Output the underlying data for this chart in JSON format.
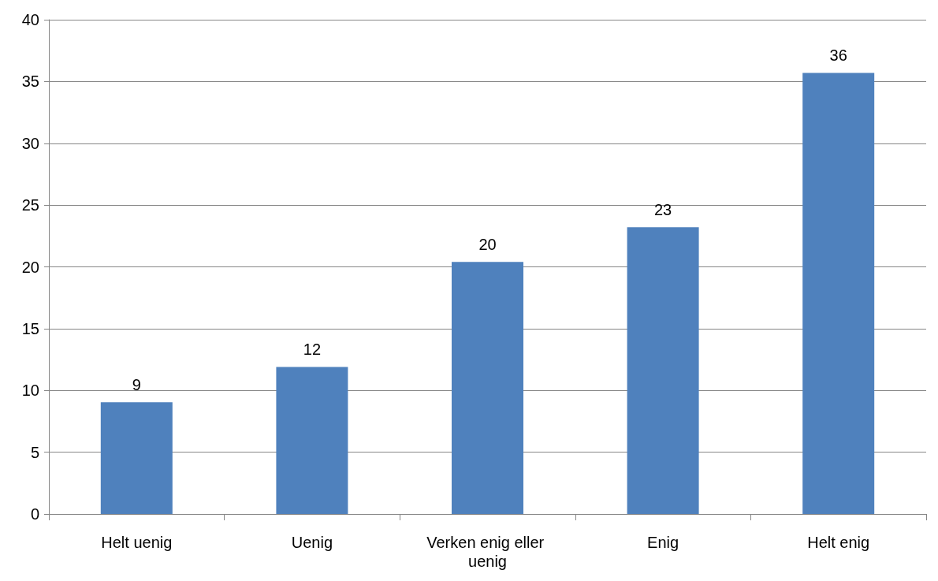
{
  "chart_data": {
    "type": "bar",
    "categories": [
      "Helt uenig",
      "Uenig",
      "Verken enig eller uenig",
      "Enig",
      "Helt enig"
    ],
    "series": [
      {
        "color": "#4f81bd",
        "values": [
          9.05,
          11.9,
          20.4,
          23.2,
          35.7
        ],
        "value_labels": [
          "9",
          "12",
          "20",
          "23",
          "36"
        ]
      }
    ],
    "ylim": [
      0,
      40
    ],
    "yticks": [
      0,
      5,
      10,
      15,
      20,
      25,
      30,
      35,
      40
    ],
    "grid": "y"
  }
}
